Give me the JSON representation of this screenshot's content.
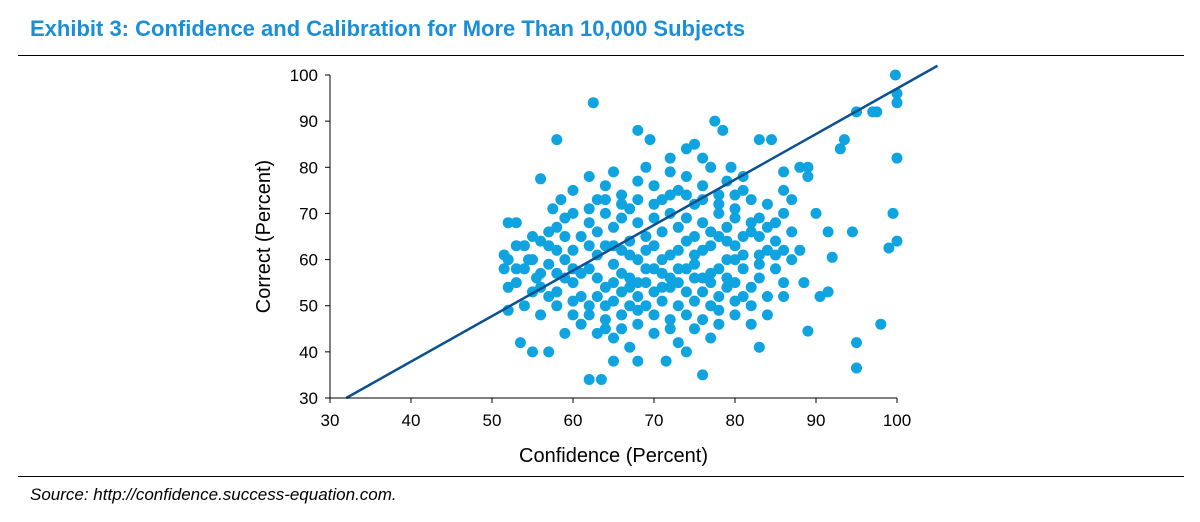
{
  "header": {
    "title": "Exhibit 3: Confidence and Calibration for More Than 10,000 Subjects"
  },
  "footer": {
    "source": "Source: http://confidence.success-equation.com."
  },
  "colors": {
    "title": "#1a8fd6",
    "points": "#0fa3e0",
    "line": "#0a5190"
  },
  "chart_data": {
    "type": "scatter",
    "title": "Exhibit 3: Confidence and Calibration for More Than 10,000 Subjects",
    "xlabel": "Confidence (Percent)",
    "ylabel": "Correct (Percent)",
    "xlim": [
      30,
      100
    ],
    "ylim": [
      30,
      100
    ],
    "xticks": [
      "30",
      "40",
      "50",
      "60",
      "70",
      "80",
      "90",
      "100"
    ],
    "yticks": [
      "30",
      "40",
      "50",
      "60",
      "70",
      "80",
      "90",
      "100"
    ],
    "grid": false,
    "legend": "none",
    "reference_line": {
      "type": "line",
      "from": [
        32,
        30
      ],
      "to": [
        105,
        102
      ]
    },
    "series": [
      {
        "points": [
          [
            62.5,
            94
          ],
          [
            58,
            86
          ],
          [
            56,
            77.5
          ],
          [
            68,
            88
          ],
          [
            69.5,
            86
          ],
          [
            72,
            82
          ],
          [
            74,
            84
          ],
          [
            75,
            85
          ],
          [
            76,
            82
          ],
          [
            77.5,
            90
          ],
          [
            78.5,
            88
          ],
          [
            79.5,
            80
          ],
          [
            81,
            78
          ],
          [
            83,
            86
          ],
          [
            84.5,
            86
          ],
          [
            86,
            79
          ],
          [
            88,
            80
          ],
          [
            89,
            78
          ],
          [
            87,
            73
          ],
          [
            86,
            75
          ],
          [
            89,
            80
          ],
          [
            93,
            84
          ],
          [
            93.5,
            86
          ],
          [
            95,
            92
          ],
          [
            97,
            92
          ],
          [
            97.5,
            92
          ],
          [
            99.8,
            100
          ],
          [
            100,
            96
          ],
          [
            100,
            94
          ],
          [
            100,
            82
          ],
          [
            99.5,
            70
          ],
          [
            100,
            64
          ],
          [
            99,
            62.5
          ],
          [
            94.5,
            66
          ],
          [
            91.5,
            66
          ],
          [
            92,
            60.5
          ],
          [
            90,
            70
          ],
          [
            91.5,
            53
          ],
          [
            90.5,
            52
          ],
          [
            88.5,
            55
          ],
          [
            89,
            44.5
          ],
          [
            86,
            52
          ],
          [
            84,
            48
          ],
          [
            82,
            46
          ],
          [
            83,
            41
          ],
          [
            95,
            42
          ],
          [
            95,
            36.5
          ],
          [
            98,
            46
          ],
          [
            76,
            35
          ],
          [
            63.5,
            34
          ],
          [
            62,
            34
          ],
          [
            65,
            38
          ],
          [
            68,
            38
          ],
          [
            71.5,
            38
          ],
          [
            74,
            40
          ],
          [
            57,
            40
          ],
          [
            55,
            40
          ],
          [
            53.5,
            42
          ],
          [
            52,
            49
          ],
          [
            52,
            54
          ],
          [
            51.5,
            58
          ],
          [
            51.5,
            61
          ],
          [
            52,
            68
          ],
          [
            53,
            68
          ],
          [
            54,
            63
          ],
          [
            54.5,
            60
          ],
          [
            55.5,
            56
          ],
          [
            56,
            64
          ],
          [
            57,
            66
          ],
          [
            57.5,
            71
          ],
          [
            58.5,
            73
          ],
          [
            59,
            69
          ],
          [
            60,
            75
          ],
          [
            62,
            78
          ],
          [
            63,
            73
          ],
          [
            64,
            76
          ],
          [
            65,
            79
          ],
          [
            66,
            74
          ],
          [
            67,
            71
          ],
          [
            68,
            77
          ],
          [
            69,
            80
          ],
          [
            70,
            76
          ],
          [
            71,
            73
          ],
          [
            72,
            79
          ],
          [
            73,
            75
          ],
          [
            74,
            78
          ],
          [
            75,
            72
          ],
          [
            76,
            76
          ],
          [
            77,
            80
          ],
          [
            78,
            74
          ],
          [
            79,
            77
          ],
          [
            80,
            71
          ],
          [
            81,
            75
          ],
          [
            82,
            73
          ],
          [
            83,
            69
          ],
          [
            84,
            72
          ],
          [
            85,
            68
          ],
          [
            86,
            70
          ],
          [
            87,
            66
          ],
          [
            88,
            62
          ],
          [
            85,
            58
          ],
          [
            86,
            55
          ],
          [
            84,
            52
          ],
          [
            83,
            56
          ],
          [
            80,
            48
          ],
          [
            78,
            46
          ],
          [
            77,
            43
          ],
          [
            75,
            45
          ],
          [
            73,
            42
          ],
          [
            72,
            47
          ],
          [
            70,
            44
          ],
          [
            68,
            46
          ],
          [
            67,
            41
          ],
          [
            66,
            45
          ],
          [
            65,
            43
          ],
          [
            64,
            47
          ],
          [
            63,
            44
          ],
          [
            61,
            46
          ],
          [
            60,
            48
          ],
          [
            59,
            44
          ],
          [
            58,
            50
          ],
          [
            57,
            52
          ],
          [
            56,
            48
          ],
          [
            55,
            53
          ],
          [
            54,
            50
          ],
          [
            53,
            55
          ],
          [
            58,
            57
          ],
          [
            60,
            55
          ],
          [
            62,
            58
          ],
          [
            63,
            61
          ],
          [
            64,
            54
          ],
          [
            65,
            59
          ],
          [
            66,
            62
          ],
          [
            67,
            56
          ],
          [
            68,
            60
          ],
          [
            69,
            58
          ],
          [
            70,
            63
          ],
          [
            71,
            57
          ],
          [
            72,
            61
          ],
          [
            73,
            55
          ],
          [
            74,
            64
          ],
          [
            75,
            59
          ],
          [
            76,
            62
          ],
          [
            77,
            57
          ],
          [
            78,
            65
          ],
          [
            79,
            60
          ],
          [
            80,
            63
          ],
          [
            81,
            58
          ],
          [
            82,
            66
          ],
          [
            83,
            61
          ],
          [
            61,
            65
          ],
          [
            62,
            68
          ],
          [
            63,
            66
          ],
          [
            64,
            70
          ],
          [
            65,
            67
          ],
          [
            66,
            69
          ],
          [
            67,
            64
          ],
          [
            68,
            68
          ],
          [
            69,
            65
          ],
          [
            70,
            69
          ],
          [
            71,
            66
          ],
          [
            72,
            70
          ],
          [
            73,
            67
          ],
          [
            74,
            69
          ],
          [
            75,
            65
          ],
          [
            76,
            68
          ],
          [
            77,
            66
          ],
          [
            78,
            70
          ],
          [
            79,
            67
          ],
          [
            80,
            69
          ],
          [
            81,
            65
          ],
          [
            82,
            68
          ],
          [
            59,
            60
          ],
          [
            60,
            62
          ],
          [
            61,
            52
          ],
          [
            62,
            50
          ],
          [
            63,
            52
          ],
          [
            64,
            50
          ],
          [
            65,
            51
          ],
          [
            66,
            53
          ],
          [
            67,
            50
          ],
          [
            68,
            52
          ],
          [
            69,
            50
          ],
          [
            70,
            53
          ],
          [
            71,
            51
          ],
          [
            72,
            54
          ],
          [
            73,
            50
          ],
          [
            74,
            53
          ],
          [
            75,
            51
          ],
          [
            76,
            53
          ],
          [
            77,
            50
          ],
          [
            78,
            52
          ],
          [
            79,
            54
          ],
          [
            80,
            55
          ],
          [
            81,
            52
          ],
          [
            82,
            54
          ],
          [
            66,
            57
          ],
          [
            68,
            55
          ],
          [
            70,
            58
          ],
          [
            72,
            56
          ],
          [
            74,
            58
          ],
          [
            76,
            56
          ],
          [
            78,
            58
          ],
          [
            80,
            60
          ],
          [
            67,
            61
          ],
          [
            69,
            62
          ],
          [
            71,
            60
          ],
          [
            73,
            62
          ],
          [
            75,
            61
          ],
          [
            77,
            63
          ],
          [
            79,
            64
          ],
          [
            65,
            63
          ],
          [
            64,
            63
          ],
          [
            62,
            63
          ],
          [
            60,
            58
          ],
          [
            58,
            62
          ],
          [
            57,
            59
          ],
          [
            56,
            57
          ],
          [
            55,
            60
          ],
          [
            54,
            58
          ],
          [
            56,
            54
          ],
          [
            58,
            53
          ],
          [
            60,
            51
          ],
          [
            62,
            48
          ],
          [
            64,
            45
          ],
          [
            66,
            48
          ],
          [
            68,
            49
          ],
          [
            70,
            48
          ],
          [
            72,
            45
          ],
          [
            74,
            48
          ],
          [
            76,
            47
          ],
          [
            78,
            49
          ],
          [
            80,
            51
          ],
          [
            82,
            50
          ],
          [
            84,
            62
          ],
          [
            85,
            64
          ],
          [
            87,
            60
          ],
          [
            83,
            65
          ],
          [
            84,
            67
          ],
          [
            86,
            62
          ],
          [
            80,
            74
          ],
          [
            78,
            72
          ],
          [
            76,
            73
          ],
          [
            74,
            74
          ],
          [
            72,
            74
          ],
          [
            70,
            72
          ],
          [
            68,
            73
          ],
          [
            66,
            72
          ],
          [
            64,
            73
          ],
          [
            62,
            71
          ],
          [
            60,
            70
          ],
          [
            58,
            67
          ],
          [
            59,
            65
          ],
          [
            57,
            63
          ],
          [
            55,
            65
          ],
          [
            53,
            63
          ],
          [
            52,
            60
          ],
          [
            53,
            58
          ],
          [
            59,
            56
          ],
          [
            61,
            57
          ],
          [
            63,
            56
          ],
          [
            65,
            55
          ],
          [
            67,
            54
          ],
          [
            69,
            55
          ],
          [
            71,
            54
          ],
          [
            73,
            58
          ],
          [
            75,
            56
          ],
          [
            77,
            55
          ],
          [
            79,
            56
          ],
          [
            81,
            61
          ],
          [
            83,
            59
          ],
          [
            85,
            61
          ]
        ]
      }
    ]
  }
}
